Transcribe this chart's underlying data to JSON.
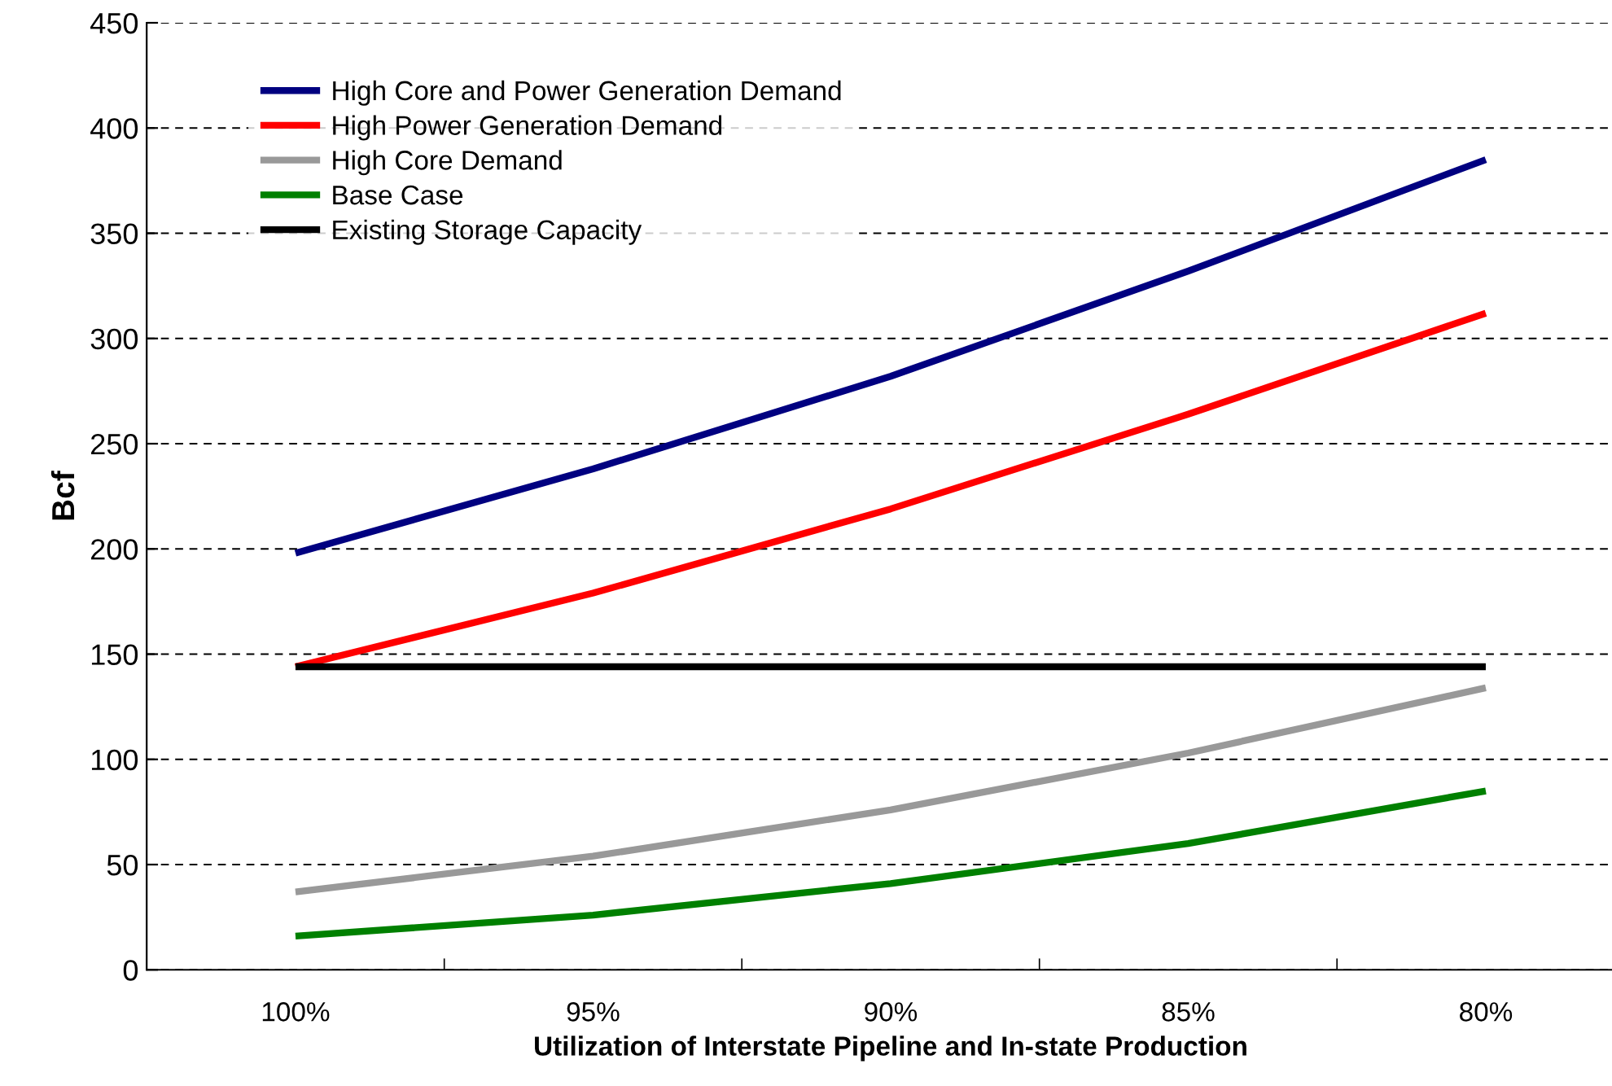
{
  "chart_data": {
    "type": "line",
    "xlabel": "Utilization of Interstate Pipeline and In-state Production",
    "ylabel": "Bcf",
    "categories": [
      "100%",
      "95%",
      "90%",
      "85%",
      "80%"
    ],
    "series": [
      {
        "name": "High Core and Power Generation Demand",
        "color": "#000080",
        "values": [
          198,
          238,
          282,
          332,
          385
        ]
      },
      {
        "name": "High Power Generation Demand",
        "color": "#ff0000",
        "values": [
          144,
          179,
          219,
          264,
          312
        ]
      },
      {
        "name": "High Core Demand",
        "color": "#999999",
        "values": [
          37,
          54,
          76,
          103,
          134
        ]
      },
      {
        "name": "Base Case",
        "color": "#008000",
        "values": [
          16,
          26,
          41,
          60,
          85
        ]
      },
      {
        "name": "Existing Storage Capacity",
        "color": "#000000",
        "values": [
          144,
          144,
          144,
          144,
          144
        ]
      }
    ],
    "ylim": [
      0,
      450
    ],
    "yticks": [
      0,
      50,
      100,
      150,
      200,
      250,
      300,
      350,
      400,
      450
    ],
    "grid": "y",
    "legend": "top left",
    "marker": "none",
    "line_style": "solid"
  }
}
